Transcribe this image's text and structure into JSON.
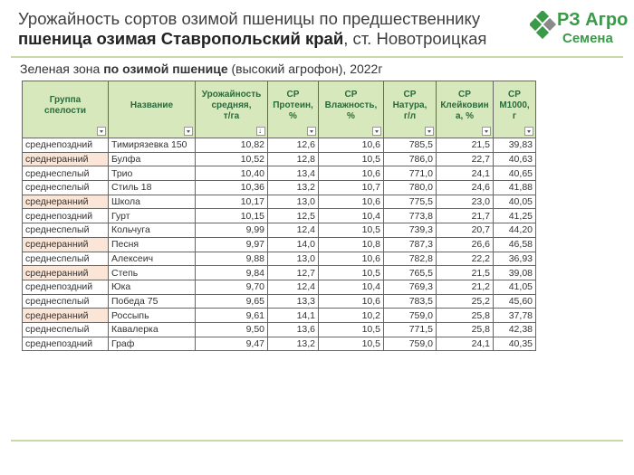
{
  "header": {
    "title_line1": "Урожайность сортов озимой пшеницы по предшественнику",
    "title_bold": "пшеница озимая Ставропольский край",
    "title_rest": ", ст. Новотроицкая"
  },
  "logo": {
    "line1": "РЗ Агро",
    "line2": "Семена",
    "colors": {
      "green": "#3a9a4a",
      "gray": "#8a8a8a"
    }
  },
  "subtitle": {
    "prefix": "Зеленая зона ",
    "bold": "по озимой пшенице",
    "suffix": " (высокий агрофон), 2022г"
  },
  "table": {
    "columns": [
      {
        "lines": [
          "Группа",
          "спелости"
        ],
        "width": 95
      },
      {
        "lines": [
          "Название"
        ],
        "width": 96
      },
      {
        "lines": [
          "Урожайность",
          "средняя,",
          "т/га"
        ],
        "width": 80,
        "sort": true
      },
      {
        "lines": [
          "СР",
          "Протеин,",
          "%"
        ],
        "width": 56
      },
      {
        "lines": [
          "СР",
          "Влажность,",
          "%"
        ],
        "width": 72
      },
      {
        "lines": [
          "СР",
          "Натура,",
          "г/л"
        ],
        "width": 58
      },
      {
        "lines": [
          "СР",
          "Клейковин",
          "а, %"
        ],
        "width": 63
      },
      {
        "lines": [
          "СР",
          "М1000,",
          "г"
        ],
        "width": 47
      }
    ],
    "rows": [
      [
        "среднепоздний",
        "Тимирязевка 150",
        "10,82",
        "12,6",
        "10,6",
        "785,5",
        "21,5",
        "39,83"
      ],
      [
        "среднеранний",
        "Булфа",
        "10,52",
        "12,8",
        "10,5",
        "786,0",
        "22,7",
        "40,63"
      ],
      [
        "среднеспелый",
        "Трио",
        "10,40",
        "13,4",
        "10,6",
        "771,0",
        "24,1",
        "40,65"
      ],
      [
        "среднеспелый",
        "Стиль 18",
        "10,36",
        "13,2",
        "10,7",
        "780,0",
        "24,6",
        "41,88"
      ],
      [
        "среднеранний",
        "Школа",
        "10,17",
        "13,0",
        "10,6",
        "775,5",
        "23,0",
        "40,05"
      ],
      [
        "среднепоздний",
        "Гурт",
        "10,15",
        "12,5",
        "10,4",
        "773,8",
        "21,7",
        "41,25"
      ],
      [
        "среднеспелый",
        "Кольчуга",
        "9,99",
        "12,4",
        "10,5",
        "739,3",
        "20,7",
        "44,20"
      ],
      [
        "среднеранний",
        "Песня",
        "9,97",
        "14,0",
        "10,8",
        "787,3",
        "26,6",
        "46,58"
      ],
      [
        "среднеспелый",
        "Алексеич",
        "9,88",
        "13,0",
        "10,6",
        "782,8",
        "22,2",
        "36,93"
      ],
      [
        "среднеранний",
        "Степь",
        "9,84",
        "12,7",
        "10,5",
        "765,5",
        "21,5",
        "39,08"
      ],
      [
        "среднепоздний",
        "Юка",
        "9,70",
        "12,4",
        "10,4",
        "769,3",
        "21,2",
        "41,05"
      ],
      [
        "среднеспелый",
        "Победа 75",
        "9,65",
        "13,3",
        "10,6",
        "783,5",
        "25,2",
        "45,60"
      ],
      [
        "среднеранний",
        "Россыпь",
        "9,61",
        "14,1",
        "10,2",
        "759,0",
        "25,8",
        "37,78"
      ],
      [
        "среднеспелый",
        "Кавалерка",
        "9,50",
        "13,6",
        "10,5",
        "771,5",
        "25,8",
        "42,38"
      ],
      [
        "среднепоздний",
        "Граф",
        "9,47",
        "13,2",
        "10,5",
        "759,0",
        "24,1",
        "40,35"
      ]
    ],
    "highlight_group": "среднеранний",
    "colors": {
      "header_bg": "#d6e8bc",
      "header_text": "#2b6a3a",
      "highlight_bg": "#fbe5d6",
      "rule": "#c8d9a8"
    }
  }
}
